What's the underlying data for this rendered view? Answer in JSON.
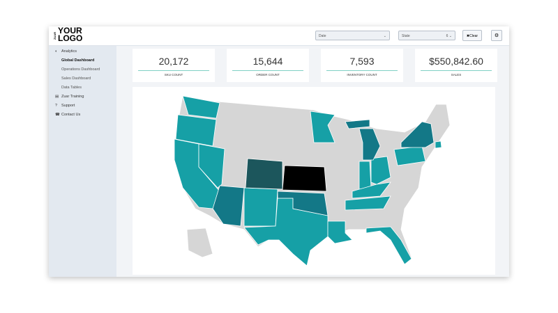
{
  "header": {
    "logo_prefix": "ZUAR",
    "logo_line1": "YOUR",
    "logo_line2": "LOGO",
    "filters": {
      "date_label": "Date",
      "state_label": "State",
      "state_count": "6",
      "clear": "Clear"
    }
  },
  "sidebar": {
    "items": [
      {
        "label": "Analytics",
        "children": [
          "Global Dashboard",
          "Operations Dashboard",
          "Sales Dashboard",
          "Data Tables"
        ]
      },
      {
        "label": "Zuar Training",
        "children": []
      },
      {
        "label": "Support",
        "children": []
      },
      {
        "label": "Contact Us",
        "children": []
      }
    ]
  },
  "kpis": [
    {
      "value": "20,172",
      "label": "SKU COUNT"
    },
    {
      "value": "15,644",
      "label": "ORDER COUNT"
    },
    {
      "value": "7,593",
      "label": "INVENTORY COUNT"
    },
    {
      "value": "$550,842.60",
      "label": "SALES"
    }
  ]
}
